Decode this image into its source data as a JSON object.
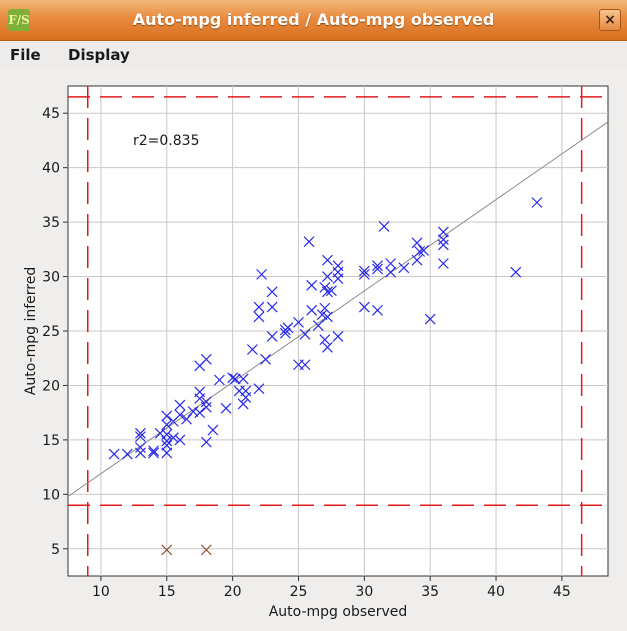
{
  "window": {
    "title": "Auto-mpg inferred / Auto-mpg observed",
    "icon_label": "F/S",
    "close_glyph": "×"
  },
  "menu": {
    "file": "File",
    "display": "Display"
  },
  "chart_data": {
    "type": "scatter",
    "xlabel": "Auto-mpg observed",
    "ylabel": "Auto-mpg inferred",
    "xlim": [
      7.5,
      48.5
    ],
    "ylim": [
      2.5,
      47.5
    ],
    "xticks": [
      10,
      15,
      20,
      25,
      30,
      35,
      40,
      45
    ],
    "yticks": [
      5,
      10,
      15,
      20,
      25,
      30,
      35,
      40,
      45
    ],
    "grid": true,
    "annotation": "r2=0.835",
    "fit_line": {
      "x": [
        7.5,
        48.5
      ],
      "y": [
        9.8,
        44.2
      ]
    },
    "limits": {
      "x_low": 9.0,
      "x_high": 46.5,
      "y_low": 9.0,
      "y_high": 46.5
    },
    "series": [
      {
        "color": "#2a2ae8",
        "points": [
          [
            11.0,
            13.7
          ],
          [
            12.0,
            13.7
          ],
          [
            13.0,
            13.8
          ],
          [
            13.0,
            14.3
          ],
          [
            13.0,
            15.3
          ],
          [
            13.0,
            15.6
          ],
          [
            14.0,
            13.8
          ],
          [
            14.0,
            14.0
          ],
          [
            14.5,
            15.6
          ],
          [
            15.0,
            13.8
          ],
          [
            15.0,
            14.5
          ],
          [
            15.0,
            14.9
          ],
          [
            15.0,
            15.5
          ],
          [
            15.0,
            16.4
          ],
          [
            15.0,
            17.2
          ],
          [
            15.5,
            15.2
          ],
          [
            15.5,
            16.7
          ],
          [
            16.0,
            15.0
          ],
          [
            16.0,
            17.3
          ],
          [
            16.0,
            18.2
          ],
          [
            16.5,
            16.9
          ],
          [
            17.5,
            17.5
          ],
          [
            17.5,
            18.8
          ],
          [
            17.5,
            19.4
          ],
          [
            17.5,
            21.8
          ],
          [
            17.0,
            17.6
          ],
          [
            18.0,
            14.8
          ],
          [
            18.0,
            18.0
          ],
          [
            18.0,
            18.5
          ],
          [
            18.0,
            22.4
          ],
          [
            18.5,
            15.9
          ],
          [
            19.0,
            20.5
          ],
          [
            19.5,
            17.9
          ],
          [
            20.0,
            20.7
          ],
          [
            20.2,
            20.6
          ],
          [
            20.5,
            19.5
          ],
          [
            20.8,
            18.3
          ],
          [
            20.8,
            20.6
          ],
          [
            21.0,
            18.9
          ],
          [
            21.0,
            19.5
          ],
          [
            21.5,
            23.3
          ],
          [
            22.0,
            19.7
          ],
          [
            22.0,
            26.3
          ],
          [
            22.0,
            27.2
          ],
          [
            22.2,
            30.2
          ],
          [
            22.5,
            22.4
          ],
          [
            23.0,
            24.5
          ],
          [
            23.0,
            27.2
          ],
          [
            23.0,
            28.6
          ],
          [
            24.0,
            24.8
          ],
          [
            24.0,
            25.1
          ],
          [
            24.2,
            25.3
          ],
          [
            25.0,
            21.9
          ],
          [
            25.0,
            25.8
          ],
          [
            25.5,
            21.9
          ],
          [
            25.5,
            24.7
          ],
          [
            26.0,
            26.9
          ],
          [
            26.0,
            29.2
          ],
          [
            25.8,
            33.2
          ],
          [
            26.5,
            25.5
          ],
          [
            26.8,
            26.5
          ],
          [
            27.0,
            24.2
          ],
          [
            27.0,
            27.1
          ],
          [
            27.0,
            29.0
          ],
          [
            27.2,
            23.5
          ],
          [
            27.2,
            26.3
          ],
          [
            27.2,
            28.6
          ],
          [
            27.2,
            30.0
          ],
          [
            27.2,
            31.5
          ],
          [
            27.5,
            28.7
          ],
          [
            28.0,
            24.5
          ],
          [
            28.0,
            29.8
          ],
          [
            28.0,
            30.4
          ],
          [
            28.0,
            31.0
          ],
          [
            30.0,
            27.2
          ],
          [
            30.0,
            30.2
          ],
          [
            30.0,
            30.5
          ],
          [
            31.0,
            26.9
          ],
          [
            31.0,
            30.7
          ],
          [
            31.0,
            31.0
          ],
          [
            31.5,
            34.6
          ],
          [
            32.0,
            30.4
          ],
          [
            32.0,
            31.2
          ],
          [
            33.0,
            30.8
          ],
          [
            34.0,
            31.5
          ],
          [
            34.0,
            33.1
          ],
          [
            34.2,
            32.3
          ],
          [
            34.5,
            32.4
          ],
          [
            35.0,
            26.1
          ],
          [
            36.0,
            31.2
          ],
          [
            36.0,
            32.9
          ],
          [
            36.0,
            33.4
          ],
          [
            36.0,
            34.1
          ],
          [
            41.5,
            30.4
          ],
          [
            43.1,
            36.8
          ]
        ]
      },
      {
        "color": "#8b4a2c",
        "points": [
          [
            15.0,
            4.9
          ],
          [
            18.0,
            4.9
          ]
        ]
      }
    ]
  }
}
